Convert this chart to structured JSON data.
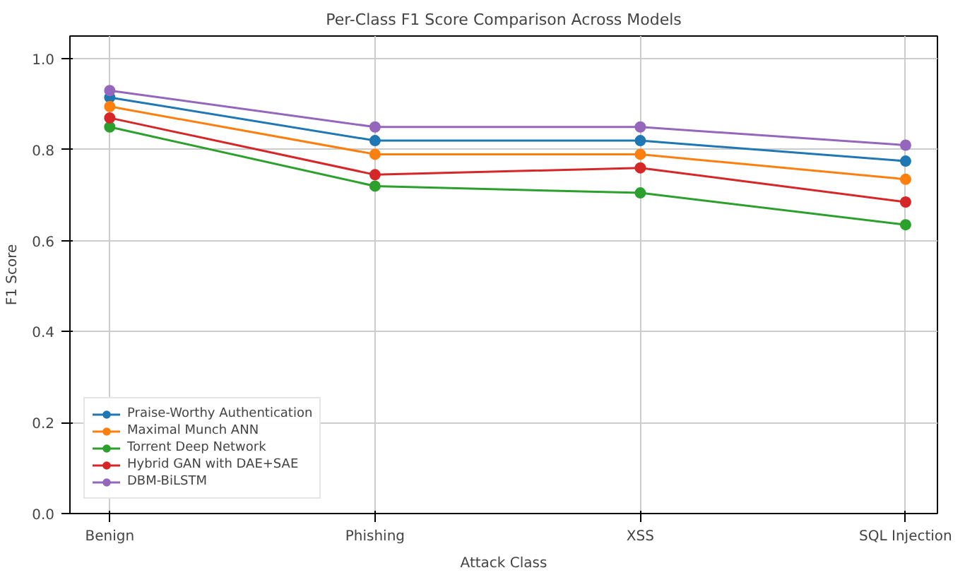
{
  "chart_data": {
    "type": "line",
    "title": "Per-Class F1 Score Comparison Across Models",
    "xlabel": "Attack Class",
    "ylabel": "F1 Score",
    "categories": [
      "Benign",
      "Phishing",
      "XSS",
      "SQL Injection"
    ],
    "series": [
      {
        "name": "Praise-Worthy Authentication",
        "color": "#1f77b4",
        "values": [
          0.915,
          0.82,
          0.82,
          0.775
        ]
      },
      {
        "name": "Maximal Munch ANN",
        "color": "#ff7f0e",
        "values": [
          0.895,
          0.79,
          0.79,
          0.735
        ]
      },
      {
        "name": "Torrent Deep Network",
        "color": "#2ca02c",
        "values": [
          0.85,
          0.72,
          0.705,
          0.635
        ]
      },
      {
        "name": "Hybrid GAN with DAE+SAE",
        "color": "#d62728",
        "values": [
          0.87,
          0.745,
          0.76,
          0.685
        ]
      },
      {
        "name": "DBM-BiLSTM",
        "color": "#9467bd",
        "values": [
          0.93,
          0.85,
          0.85,
          0.81
        ]
      }
    ],
    "ylim": [
      0,
      1.05
    ],
    "yticks": [
      {
        "value": 0,
        "label": "0.0"
      },
      0.2,
      0.4,
      0.6,
      0.8,
      {
        "value": 1,
        "label": "1.0"
      }
    ],
    "grid": true,
    "legend": "bottom left",
    "marker": "circle",
    "line_style": "solid"
  }
}
